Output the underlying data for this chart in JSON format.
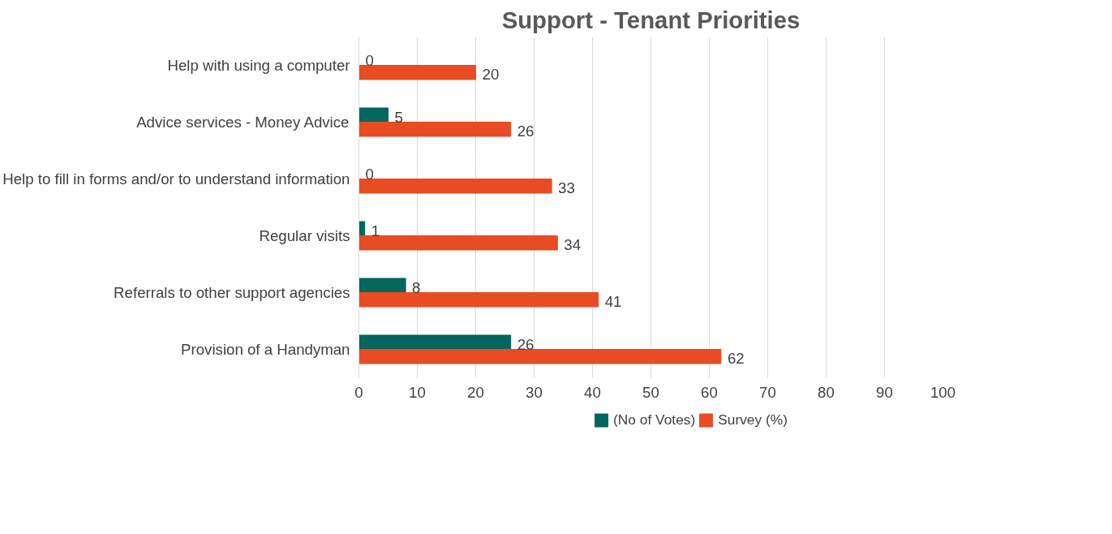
{
  "chart_data": {
    "type": "bar",
    "orientation": "horizontal",
    "title": "Support - Tenant Priorities",
    "categories": [
      "Help with using a computer",
      "Advice services - Money Advice",
      "Help to fill in forms and/or to understand information",
      "Regular visits",
      "Referrals to other support agencies",
      "Provision of a Handyman"
    ],
    "series": [
      {
        "name": "(No of Votes)",
        "color": "#03665f",
        "values": [
          0,
          5,
          0,
          1,
          8,
          26
        ]
      },
      {
        "name": "Survey (%)",
        "color": "#e84c22",
        "values": [
          20,
          26,
          33,
          34,
          41,
          62
        ]
      }
    ],
    "xlim": [
      0,
      100
    ],
    "xticks": [
      0,
      10,
      20,
      30,
      40,
      50,
      60,
      70,
      80,
      90,
      100
    ],
    "grid": "x",
    "legend": "bottom",
    "data_labels": true
  }
}
